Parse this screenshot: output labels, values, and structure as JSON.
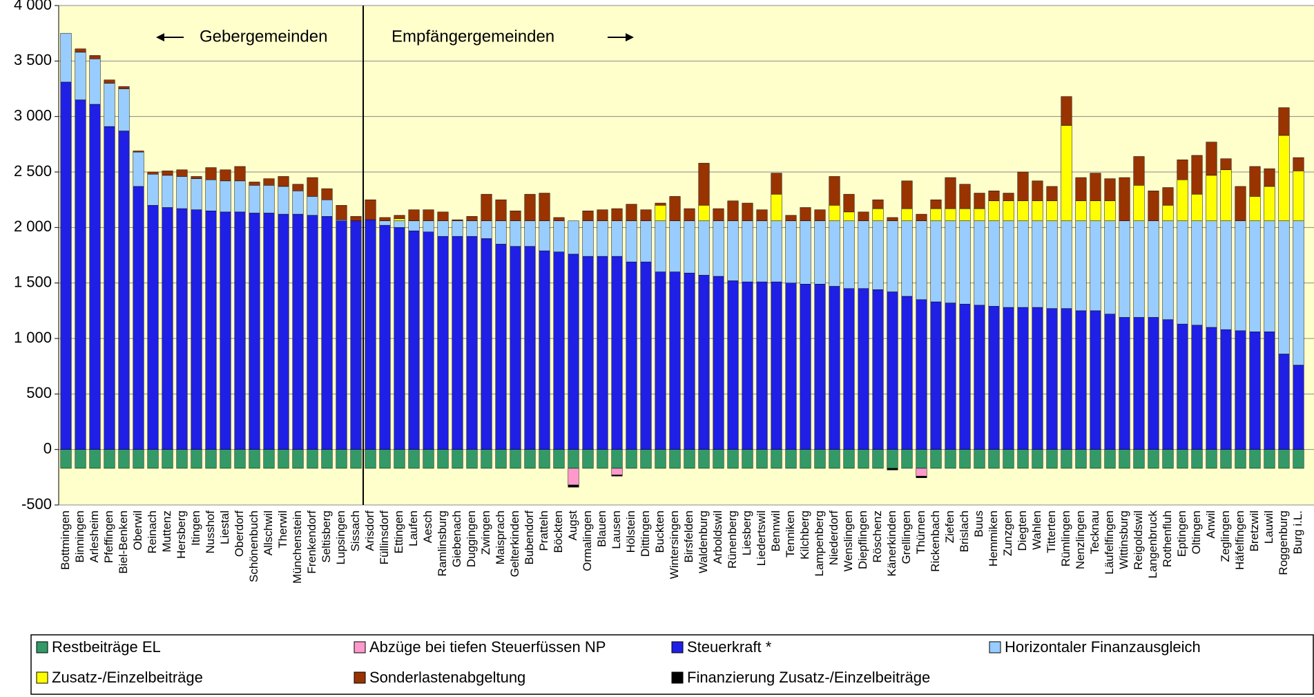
{
  "chart_data": {
    "type": "stacked_bar",
    "annotations": [
      "Gebergemeinden",
      "Empfängergemeinden"
    ],
    "categories": [
      "Bottmingen",
      "Binningen",
      "Arlesheim",
      "Pfeffingen",
      "Biel-Benken",
      "Oberwil",
      "Reinach",
      "Muttenz",
      "Hersberg",
      "Itingen",
      "Nusshof",
      "Liestal",
      "Oberdorf",
      "Schönenbuch",
      "Allschwil",
      "Therwil",
      "Münchenstein",
      "Frenkendorf",
      "Seltisberg",
      "Lupsingen",
      "Sissach",
      "Arisdorf",
      "Füllinsdorf",
      "Ettingen",
      "Laufen",
      "Aesch",
      "Ramlinsburg",
      "Giebenach",
      "Duggingen",
      "Zwingen",
      "Maisprach",
      "Gelterkinden",
      "Bubendorf",
      "Pratteln",
      "Böckten",
      "Augst",
      "Ormalingen",
      "Blauen",
      "Lausen",
      "Hölstein",
      "Dittingen",
      "Buckten",
      "Wintersingen",
      "Birsfelden",
      "Waldenburg",
      "Arboldswil",
      "Rünenberg",
      "Liesberg",
      "Liedertswil",
      "Bennwil",
      "Tenniken",
      "Kilchberg",
      "Lampenberg",
      "Niederdorf",
      "Wenslingen",
      "Diepflingen",
      "Röschenz",
      "Känerkinden",
      "Grellingen",
      "Thürnen",
      "Rickenbach",
      "Ziefen",
      "Brislach",
      "Buus",
      "Hemmiken",
      "Zunzgen",
      "Diegten",
      "Wahlen",
      "Titterten",
      "Rümlingen",
      "Nenzlingen",
      "Tecknau",
      "Läufelfingen",
      "Wittinsburg",
      "Reigoldswil",
      "Langenbruck",
      "Rothenfluh",
      "Eptingen",
      "Oltingen",
      "Anwil",
      "Zeglingen",
      "Häfelfingen",
      "Bretzwil",
      "Lauwil",
      "Roggenburg",
      "Burg i.L."
    ],
    "series": [
      {
        "name": "Restbeiträge EL",
        "color": "#339966",
        "values": [
          -170,
          -170,
          -170,
          -170,
          -170,
          -170,
          -170,
          -170,
          -170,
          -170,
          -170,
          -170,
          -170,
          -170,
          -170,
          -170,
          -170,
          -170,
          -170,
          -170,
          -170,
          -170,
          -170,
          -170,
          -170,
          -170,
          -170,
          -170,
          -170,
          -170,
          -170,
          -170,
          -170,
          -170,
          -170,
          -170,
          -170,
          -170,
          -170,
          -170,
          -170,
          -170,
          -170,
          -170,
          -170,
          -170,
          -170,
          -170,
          -170,
          -170,
          -170,
          -170,
          -170,
          -170,
          -170,
          -170,
          -170,
          -170,
          -170,
          -170,
          -170,
          -170,
          -170,
          -170,
          -170,
          -170,
          -170,
          -170,
          -170,
          -170,
          -170,
          -170,
          -170,
          -170,
          -170,
          -170,
          -170,
          -170,
          -170,
          -170,
          -170,
          -170,
          -170,
          -170,
          -170,
          -170
        ]
      },
      {
        "name": "Abzüge bei tiefen Steuerfüssen NP",
        "color": "#ff99cc",
        "values": [
          0,
          0,
          0,
          0,
          0,
          0,
          0,
          0,
          0,
          0,
          0,
          0,
          0,
          0,
          0,
          0,
          0,
          0,
          0,
          0,
          0,
          0,
          0,
          0,
          0,
          0,
          0,
          0,
          0,
          0,
          0,
          0,
          0,
          0,
          0,
          -150,
          0,
          0,
          -60,
          0,
          0,
          0,
          0,
          0,
          0,
          0,
          0,
          0,
          0,
          0,
          0,
          0,
          0,
          0,
          0,
          0,
          0,
          0,
          0,
          -70,
          0,
          0,
          0,
          0,
          0,
          0,
          0,
          0,
          0,
          0,
          0,
          0,
          0,
          0,
          0,
          0,
          0,
          0,
          0,
          0,
          0,
          0,
          0,
          0,
          0,
          0
        ]
      },
      {
        "name": "Steuerkraft *",
        "color": "#1f1fe6",
        "values": [
          3310,
          3150,
          3110,
          2910,
          2870,
          2370,
          2200,
          2180,
          2170,
          2160,
          2150,
          2140,
          2140,
          2130,
          2130,
          2120,
          2120,
          2110,
          2100,
          2060,
          2060,
          2070,
          2020,
          2000,
          1970,
          1960,
          1920,
          1920,
          1920,
          1900,
          1850,
          1830,
          1830,
          1790,
          1780,
          1760,
          1740,
          1740,
          1740,
          1690,
          1690,
          1600,
          1600,
          1590,
          1570,
          1560,
          1520,
          1510,
          1510,
          1510,
          1500,
          1490,
          1490,
          1470,
          1450,
          1450,
          1440,
          1420,
          1380,
          1350,
          1330,
          1320,
          1310,
          1300,
          1290,
          1280,
          1280,
          1280,
          1270,
          1270,
          1250,
          1250,
          1220,
          1190,
          1190,
          1190,
          1170,
          1130,
          1120,
          1100,
          1080,
          1070,
          1060,
          1060,
          860,
          760
        ]
      },
      {
        "name": "Horizontaler Finanzausgleich",
        "color": "#99ccff",
        "values": [
          440,
          430,
          410,
          390,
          380,
          310,
          280,
          290,
          290,
          280,
          280,
          280,
          280,
          250,
          250,
          250,
          210,
          170,
          150,
          10,
          0,
          0,
          40,
          60,
          90,
          100,
          140,
          140,
          140,
          160,
          210,
          230,
          230,
          270,
          280,
          300,
          320,
          320,
          320,
          370,
          370,
          460,
          460,
          470,
          490,
          500,
          540,
          550,
          550,
          550,
          560,
          570,
          570,
          590,
          610,
          610,
          620,
          640,
          680,
          710,
          730,
          740,
          750,
          760,
          770,
          780,
          780,
          780,
          790,
          790,
          810,
          810,
          840,
          870,
          870,
          870,
          890,
          930,
          940,
          960,
          980,
          990,
          1000,
          1000,
          1200,
          1300
        ]
      },
      {
        "name": "Zusatz-/Einzelbeiträge",
        "color": "#ffff00",
        "values": [
          0,
          0,
          0,
          0,
          0,
          0,
          0,
          0,
          0,
          0,
          0,
          0,
          0,
          0,
          0,
          0,
          0,
          0,
          0,
          0,
          0,
          0,
          0,
          20,
          0,
          0,
          0,
          0,
          0,
          0,
          0,
          0,
          0,
          0,
          0,
          0,
          0,
          0,
          0,
          0,
          0,
          140,
          0,
          0,
          140,
          0,
          0,
          0,
          0,
          240,
          0,
          0,
          0,
          140,
          80,
          0,
          110,
          0,
          110,
          0,
          110,
          110,
          110,
          110,
          180,
          180,
          180,
          180,
          180,
          860,
          180,
          180,
          180,
          0,
          320,
          0,
          140,
          370,
          240,
          410,
          460,
          0,
          220,
          310,
          770,
          450
        ]
      },
      {
        "name": "Sonderlastenabgeltung",
        "color": "#993300",
        "values": [
          0,
          30,
          30,
          30,
          20,
          10,
          20,
          40,
          60,
          20,
          110,
          100,
          130,
          30,
          60,
          90,
          60,
          170,
          100,
          130,
          40,
          180,
          30,
          30,
          100,
          100,
          80,
          10,
          40,
          240,
          190,
          90,
          240,
          250,
          30,
          0,
          90,
          100,
          110,
          150,
          100,
          20,
          220,
          110,
          380,
          110,
          180,
          160,
          100,
          190,
          50,
          120,
          100,
          260,
          160,
          80,
          80,
          30,
          250,
          60,
          80,
          280,
          220,
          140,
          90,
          70,
          260,
          180,
          130,
          260,
          210,
          250,
          200,
          390,
          260,
          270,
          160,
          180,
          350,
          300,
          100,
          310,
          270,
          160,
          250,
          120
        ]
      },
      {
        "name": "Finanzierung Zusatz-/Einzelbeiträge",
        "color": "#000000",
        "values": [
          0,
          0,
          0,
          0,
          0,
          0,
          0,
          0,
          0,
          0,
          0,
          0,
          0,
          0,
          0,
          0,
          0,
          0,
          0,
          0,
          0,
          0,
          0,
          0,
          0,
          0,
          0,
          0,
          0,
          0,
          0,
          0,
          0,
          0,
          0,
          -20,
          0,
          0,
          -10,
          0,
          0,
          0,
          0,
          0,
          0,
          0,
          0,
          0,
          0,
          0,
          0,
          0,
          0,
          0,
          0,
          0,
          0,
          -15,
          0,
          -15,
          0,
          0,
          0,
          0,
          0,
          0,
          0,
          0,
          0,
          0,
          0,
          0,
          0,
          0,
          0,
          0,
          0,
          0,
          0,
          0,
          0,
          0,
          0,
          0,
          0,
          0
        ]
      }
    ],
    "ylim": [
      -500,
      4000
    ],
    "yticks": [
      -500,
      0,
      500,
      {
        "value": 1000,
        "label": "1 000"
      },
      {
        "value": 1500,
        "label": "1 500"
      },
      {
        "value": 2000,
        "label": "2 000"
      },
      {
        "value": 2500,
        "label": "2 500"
      },
      {
        "value": 3000,
        "label": "3 000"
      },
      {
        "value": 3500,
        "label": "3 500"
      },
      {
        "value": 4000,
        "label": "4 000"
      }
    ],
    "grid": true,
    "plot_background": "#ffffcc"
  }
}
